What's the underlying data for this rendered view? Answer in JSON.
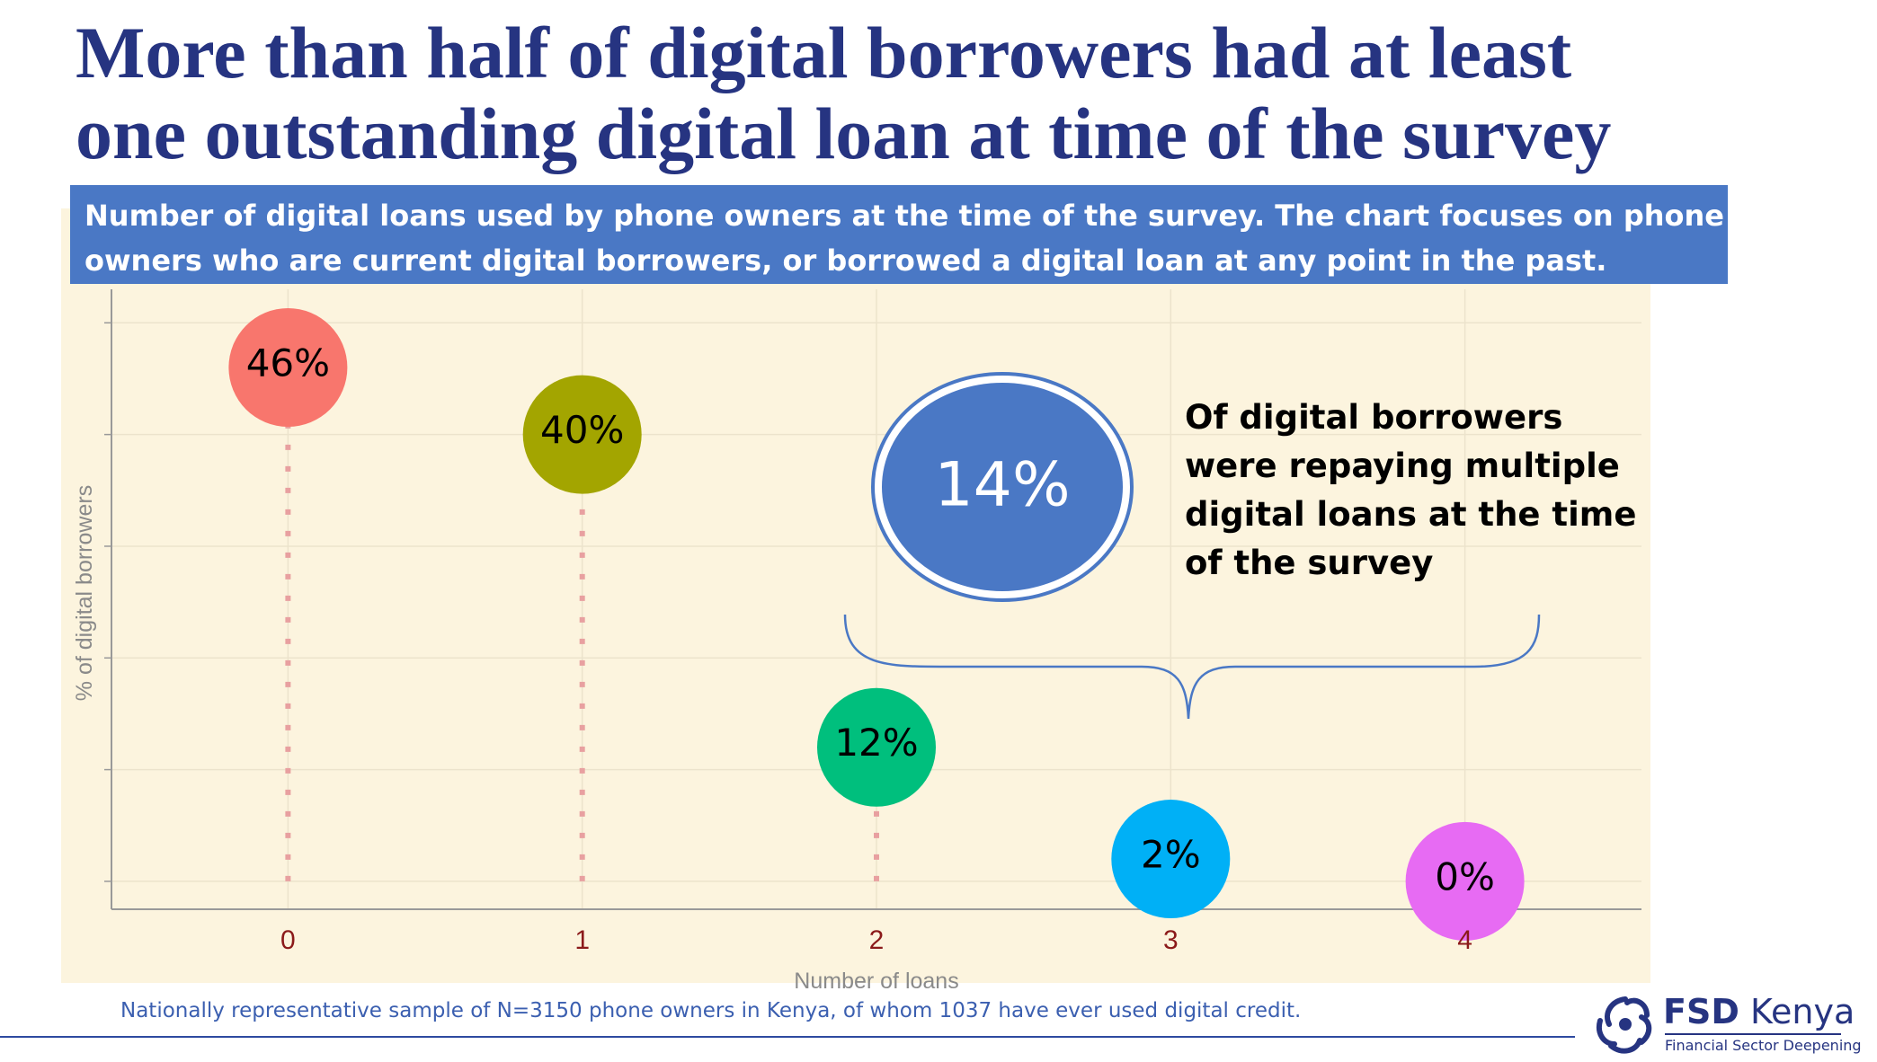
{
  "title_lines": [
    "More than half of digital borrowers had at least",
    "one outstanding digital loan at time of the survey"
  ],
  "subtitle_lines": [
    "Number of digital loans used by phone owners at the time of the survey. The chart focuses on phone",
    "owners who are current digital borrowers, or borrowed a digital loan at any point in the past."
  ],
  "chart_data": {
    "type": "scatter",
    "subtype": "lollipop",
    "x": [
      0,
      1,
      2,
      3,
      4
    ],
    "tick_labels": [
      "0",
      "1",
      "2",
      "3",
      "4"
    ],
    "values": [
      46,
      40,
      12,
      2,
      0
    ],
    "data_labels": [
      "46%",
      "40%",
      "12%",
      "2%",
      "0%"
    ],
    "point_colors": [
      "#f8766d",
      "#a3a500",
      "#00bf7d",
      "#00b0f6",
      "#e76bf3"
    ],
    "stem_color": "#e8a0a0",
    "xlabel": "Number of loans",
    "ylabel": "% of digital borrowers",
    "xlim": [
      -0.6,
      4.6
    ],
    "ylim": [
      -2.5,
      53
    ],
    "y_ticks": [
      0,
      10,
      20,
      30,
      40,
      50
    ],
    "grid": true,
    "background": "#fcf4de"
  },
  "highlight": {
    "value": "14%",
    "text_lines": [
      "Of digital borrowers",
      "were repaying multiple",
      "digital loans at the time",
      "of the survey"
    ],
    "fill": "#4a78c5"
  },
  "footnote": "Nationally representative sample of N=3150 phone owners in Kenya, of whom 1037 have ever used digital credit.",
  "logo": {
    "name_bold": "FSD",
    "name_rest": "Kenya",
    "tagline": "Financial Sector Deepening"
  },
  "colors": {
    "title": "#263481",
    "subtitle_band": "#4a78c5",
    "footnote": "#3b5fb0"
  }
}
